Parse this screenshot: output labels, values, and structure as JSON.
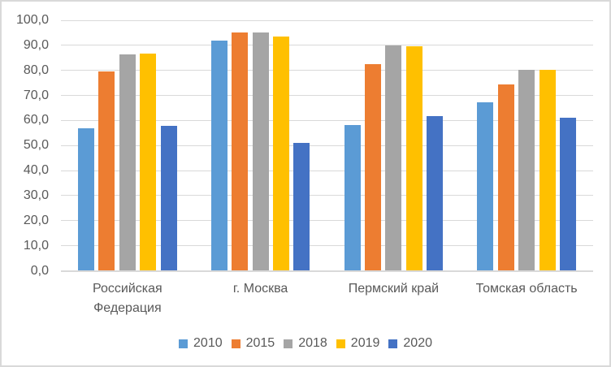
{
  "chart_data": {
    "type": "bar",
    "title": "",
    "xlabel": "",
    "ylabel": "",
    "categories": [
      "Российская Федерация",
      "г. Москва",
      "Пермский край",
      "Томская область"
    ],
    "series": [
      {
        "name": "2010",
        "color": "#5B9BD5",
        "values": [
          56.8,
          91.8,
          58.3,
          67.1
        ]
      },
      {
        "name": "2015",
        "color": "#ED7D31",
        "values": [
          79.5,
          95.0,
          82.4,
          74.3
        ]
      },
      {
        "name": "2018",
        "color": "#A5A5A5",
        "values": [
          86.3,
          95.0,
          89.8,
          80.2
        ]
      },
      {
        "name": "2019",
        "color": "#FFC000",
        "values": [
          86.6,
          93.6,
          89.6,
          80.1
        ]
      },
      {
        "name": "2020",
        "color": "#4472C4",
        "values": [
          57.9,
          51.0,
          61.7,
          61.0
        ]
      }
    ],
    "y_axis": {
      "min": 0,
      "max": 100,
      "step": 10,
      "tick_labels_top_to_bottom": [
        "100,0",
        "90,0",
        "80,0",
        "70,0",
        "60,0",
        "50,0",
        "40,0",
        "30,0",
        "20,0",
        "10,0",
        "0,0"
      ],
      "decimal_separator": ","
    },
    "grid": true,
    "legend_position": "bottom",
    "legend_labels": [
      "2010",
      "2015",
      "2018",
      "2019",
      "2020"
    ]
  },
  "colors": {
    "grid": "#D9D9D9",
    "border": "#D9D9D9",
    "text": "#595959",
    "background": "#FFFFFF"
  }
}
